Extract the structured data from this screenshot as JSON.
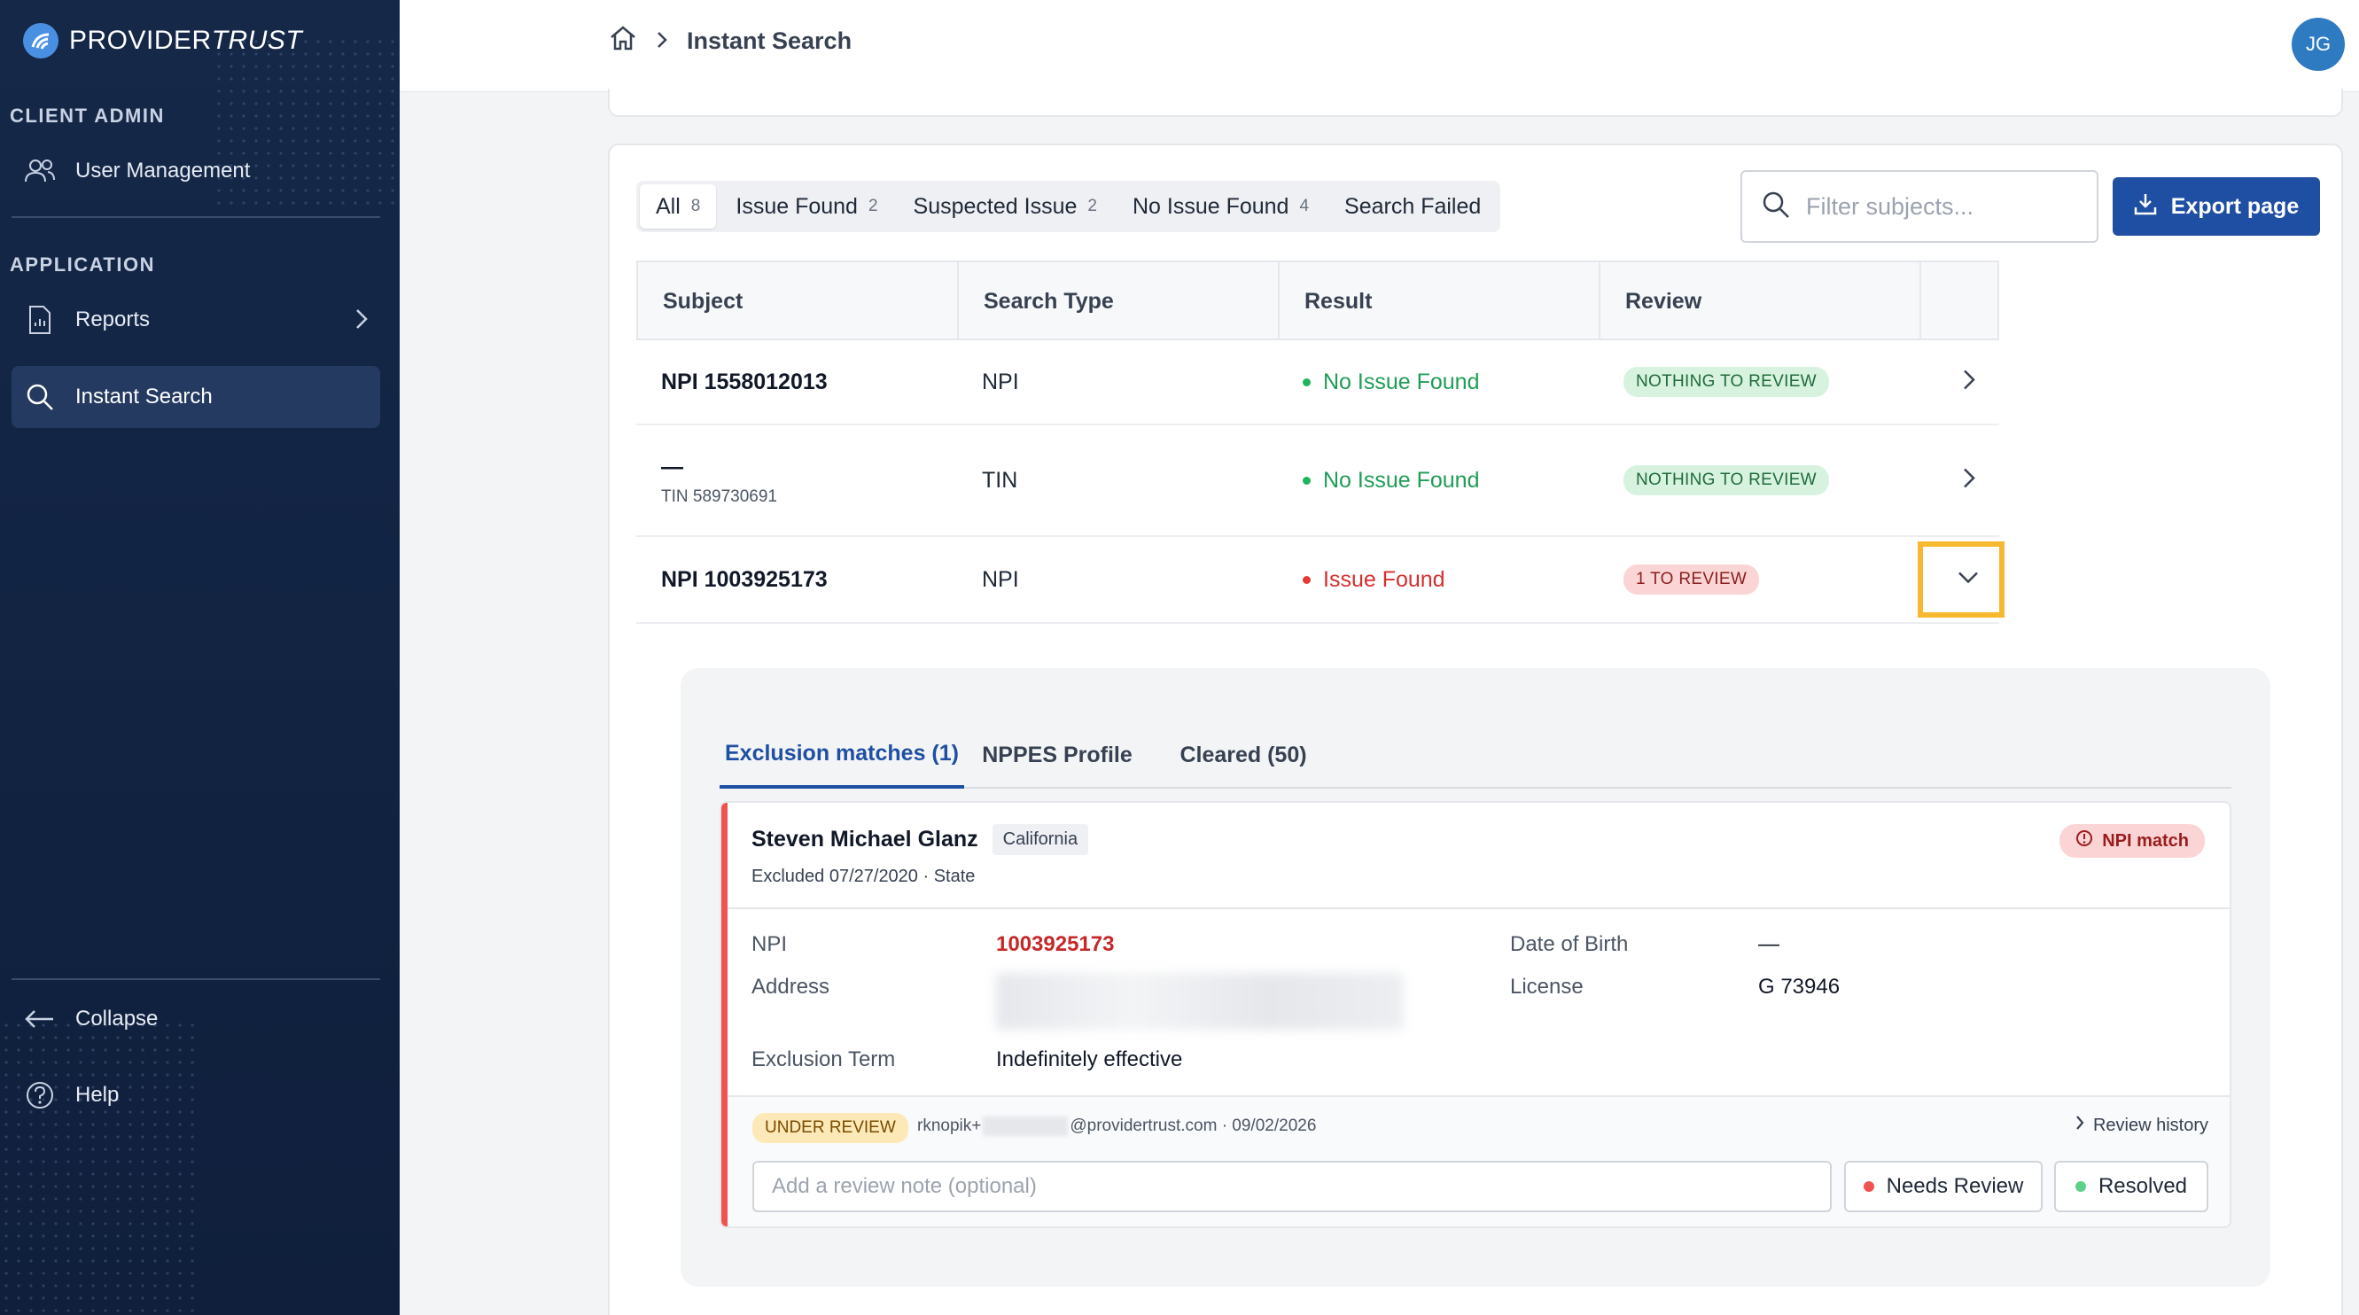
{
  "brand": {
    "name_plain": "PROVIDER",
    "name_italic": "TRUST"
  },
  "sidebar": {
    "sections": [
      {
        "label": "CLIENT ADMIN",
        "items": [
          {
            "label": "User Management",
            "icon": "users-icon"
          }
        ]
      },
      {
        "label": "APPLICATION",
        "items": [
          {
            "label": "Reports",
            "icon": "document-icon"
          },
          {
            "label": "Instant Search",
            "icon": "search-icon"
          }
        ]
      }
    ],
    "collapse_label": "Collapse",
    "help_label": "Help"
  },
  "header": {
    "breadcrumb": "Instant Search",
    "avatar_initials": "JG"
  },
  "filters": [
    {
      "label": "All",
      "count": "8"
    },
    {
      "label": "Issue Found",
      "count": "2"
    },
    {
      "label": "Suspected Issue",
      "count": "2"
    },
    {
      "label": "No Issue Found",
      "count": "4"
    },
    {
      "label": "Search Failed",
      "count": ""
    }
  ],
  "search": {
    "placeholder": "Filter subjects..."
  },
  "export_label": "Export page",
  "table": {
    "columns": [
      "Subject",
      "Search Type",
      "Result",
      "Review"
    ],
    "rows": [
      {
        "subject": "NPI 1558012013",
        "subsub": "",
        "type": "NPI",
        "result": "No Issue Found",
        "review": "NOTHING TO REVIEW"
      },
      {
        "subject": "—",
        "subsub": "TIN 589730691",
        "type": "TIN",
        "result": "No Issue Found",
        "review": "NOTHING TO REVIEW"
      },
      {
        "subject": "NPI 1003925173",
        "subsub": "",
        "type": "NPI",
        "result": "Issue Found",
        "review": "1 TO REVIEW"
      }
    ]
  },
  "detail": {
    "tabs": [
      "Exclusion matches (1)",
      "NPPES Profile",
      "Cleared (50)"
    ],
    "match": {
      "name": "Steven Michael Glanz",
      "state_chip": "California",
      "subtitle": "Excluded 07/27/2020 · State",
      "badge": "NPI match",
      "fields": {
        "npi_label": "NPI",
        "npi_value": "1003925173",
        "address_label": "Address",
        "dob_label": "Date of Birth",
        "dob_value": "—",
        "license_label": "License",
        "license_value": "G 73946",
        "term_label": "Exclusion Term",
        "term_value": "Indefinitely effective"
      },
      "review": {
        "status": "UNDER REVIEW",
        "reviewer_prefix": "rknopik+",
        "reviewer_suffix": "@providertrust.com · 09/02/2026",
        "history_label": "Review history",
        "note_placeholder": "Add a review note (optional)",
        "needs_review_label": "Needs Review",
        "resolved_label": "Resolved"
      }
    }
  },
  "colors": {
    "sidebar": "#16284a",
    "primary": "#1f4fa3",
    "success": "#22b35e",
    "danger": "#e53935",
    "highlight": "#f5b82e"
  }
}
